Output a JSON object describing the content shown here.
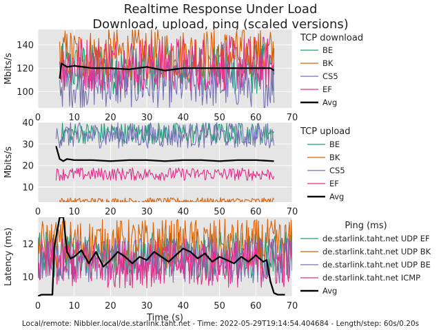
{
  "title_line1": "Realtime Response Under Load",
  "title_line2": "Download, upload, ping (scaled versions)",
  "footer": "Local/remote: Nibbler.local/de.starlink.taht.net - Time: 2022-05-29T19:14:54.404684 - Length/step: 60s/0.20s",
  "colors": {
    "be": "#1b9e77",
    "bk": "#d95f02",
    "cs5": "#7570b3",
    "ef": "#e7298a",
    "avg": "#000000",
    "panel_bg": "#e5e5e5"
  },
  "chart_data": [
    {
      "type": "line",
      "title": "",
      "xlabel": "",
      "ylabel": "Mbits/s",
      "xlim": [
        0,
        70
      ],
      "ylim": [
        86,
        153
      ],
      "xticks": [
        "0",
        "10",
        "20",
        "30",
        "40",
        "50",
        "60",
        "70"
      ],
      "yticks": [
        "100",
        "120",
        "140"
      ],
      "ytick_values": [
        100,
        120,
        140
      ],
      "legend_title": "TCP download",
      "legend_position": "right",
      "series": [
        {
          "name": "BE",
          "color_key": "be",
          "approx_mean": 119,
          "approx_spread": 22,
          "x_range": [
            6,
            65
          ]
        },
        {
          "name": "BK",
          "color_key": "bk",
          "approx_mean": 132,
          "approx_spread": 22,
          "x_range": [
            6,
            65
          ]
        },
        {
          "name": "CS5",
          "color_key": "cs5",
          "approx_mean": 106,
          "approx_spread": 20,
          "x_range": [
            6,
            65
          ]
        },
        {
          "name": "EF",
          "color_key": "ef",
          "approx_mean": 124,
          "approx_spread": 24,
          "x_range": [
            6,
            65
          ]
        },
        {
          "name": "Avg",
          "color_key": "avg",
          "x": [
            6,
            6.5,
            8,
            10,
            15,
            20,
            25,
            30,
            35,
            40,
            45,
            50,
            55,
            60,
            64,
            65
          ],
          "values": [
            111,
            124,
            121,
            122,
            120,
            120,
            119,
            121,
            118,
            120,
            120,
            120,
            120,
            120,
            120,
            118
          ]
        }
      ]
    },
    {
      "type": "line",
      "title": "",
      "xlabel": "",
      "ylabel": "Mbits/s",
      "xlim": [
        0,
        70
      ],
      "ylim": [
        3,
        40
      ],
      "xticks": [
        "0",
        "10",
        "20",
        "30",
        "40",
        "50",
        "60",
        "70"
      ],
      "yticks": [
        "10",
        "20",
        "30",
        "40"
      ],
      "ytick_values": [
        10,
        20,
        30,
        40
      ],
      "legend_title": "TCP upload",
      "legend_position": "right",
      "series": [
        {
          "name": "BE",
          "color_key": "be",
          "approx_mean": 35,
          "approx_spread": 5,
          "x_range": [
            6,
            65
          ]
        },
        {
          "name": "BK",
          "color_key": "bk",
          "approx_mean": 3.5,
          "approx_spread": 1.5,
          "x_range": [
            6,
            65
          ]
        },
        {
          "name": "CS5",
          "color_key": "cs5",
          "approx_mean": 34,
          "approx_spread": 6,
          "x_range": [
            5,
            65
          ]
        },
        {
          "name": "EF",
          "color_key": "ef",
          "approx_mean": 16,
          "approx_spread": 3,
          "x_range": [
            5,
            65
          ]
        },
        {
          "name": "Avg",
          "color_key": "avg",
          "x": [
            5,
            6,
            7,
            8,
            10,
            15,
            20,
            25,
            30,
            35,
            40,
            45,
            50,
            55,
            60,
            65
          ],
          "values": [
            29,
            23,
            22,
            23,
            22.5,
            22.5,
            22,
            22.5,
            22.5,
            22,
            22.5,
            22.5,
            22,
            22.5,
            22.5,
            22
          ]
        }
      ]
    },
    {
      "type": "line",
      "title": "",
      "xlabel": "Time (s)",
      "ylabel": "Latency (ms)",
      "xlim": [
        0,
        70
      ],
      "ylim": [
        8.8,
        13.6
      ],
      "xticks": [
        "0",
        "10",
        "20",
        "30",
        "40",
        "50",
        "60",
        "70"
      ],
      "yticks": [
        "10",
        "12"
      ],
      "ytick_values": [
        10,
        12
      ],
      "legend_title": "Ping (ms)",
      "legend_position": "right",
      "series": [
        {
          "name": "de.starlink.taht.net UDP EF",
          "color_key": "be",
          "approx_mean": 11.3,
          "approx_spread": 1.4,
          "x_range": [
            0,
            70
          ]
        },
        {
          "name": "de.starlink.taht.net UDP BK",
          "color_key": "bk",
          "approx_mean": 12.0,
          "approx_spread": 1.5,
          "x_range": [
            0,
            70
          ]
        },
        {
          "name": "de.starlink.taht.net UDP BE",
          "color_key": "cs5",
          "approx_mean": 11.0,
          "approx_spread": 1.4,
          "x_range": [
            0,
            70
          ]
        },
        {
          "name": "de.starlink.taht.net ICMP",
          "color_key": "ef",
          "approx_mean": 10.8,
          "approx_spread": 1.5,
          "x_range": [
            0,
            70
          ]
        },
        {
          "name": "Avg",
          "color_key": "avg",
          "x": [
            0,
            1,
            4,
            4.5,
            5,
            6,
            7,
            8,
            9,
            10,
            12,
            14,
            16,
            18,
            20,
            22,
            24,
            26,
            28,
            30,
            32,
            34,
            36,
            38,
            40,
            42,
            44,
            46,
            48,
            50,
            52,
            54,
            56,
            58,
            60,
            62,
            63,
            64,
            65,
            66,
            67,
            68
          ],
          "values": [
            8.8,
            8.9,
            8.9,
            11.8,
            12.4,
            13.6,
            13.6,
            11.5,
            11.1,
            11.2,
            11.6,
            10.8,
            11.5,
            10.6,
            11.0,
            11.5,
            11.2,
            10.8,
            11.2,
            11.0,
            11.5,
            11.2,
            10.9,
            11.3,
            11.7,
            11.5,
            11.1,
            11.4,
            10.9,
            11.2,
            11.0,
            10.8,
            11.2,
            10.9,
            11.3,
            10.9,
            11.0,
            9.7,
            9.0,
            8.9,
            8.9,
            8.9
          ]
        }
      ]
    }
  ]
}
